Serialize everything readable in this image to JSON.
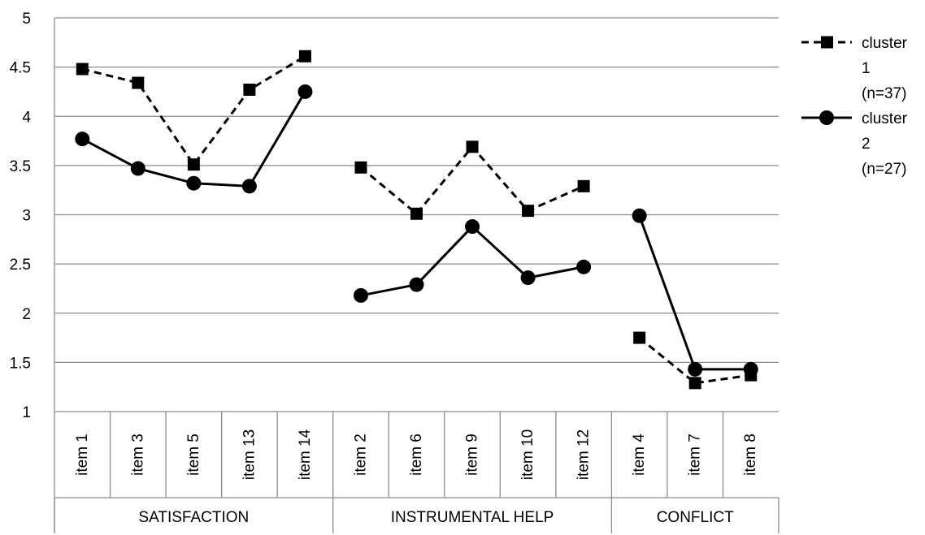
{
  "chart_data": {
    "type": "line",
    "title": "",
    "xlabel": "",
    "ylabel": "",
    "ylim": [
      1,
      5
    ],
    "y_ticks": [
      "1",
      "1.5",
      "2",
      "2.5",
      "3",
      "3.5",
      "4",
      "4.5",
      "5"
    ],
    "grid": "horizontal",
    "legend_position": "right",
    "categories": [
      "item 1",
      "item 3",
      "item 5",
      "item 13",
      "item 14",
      "item 2",
      "item 6",
      "item 9",
      "item 10",
      "item 12",
      "item 4",
      "item 7",
      "item 8"
    ],
    "groups": [
      {
        "label": "SATISFACTION",
        "count": 5
      },
      {
        "label": "INSTRUMENTAL HELP",
        "count": 5
      },
      {
        "label": "CONFLICT",
        "count": 3
      }
    ],
    "series": [
      {
        "name": "cluster 1 (n=37)",
        "legend_lines": [
          "cluster",
          "1",
          "(n=37)"
        ],
        "marker": "square",
        "line_style": "dashed",
        "color": "#000000",
        "values": [
          4.48,
          4.34,
          3.51,
          4.27,
          4.61,
          3.48,
          3.01,
          3.69,
          3.04,
          3.29,
          1.75,
          1.29,
          1.37
        ]
      },
      {
        "name": "cluster 2 (n=27)",
        "legend_lines": [
          "cluster",
          "2",
          "(n=27)"
        ],
        "marker": "circle",
        "line_style": "solid",
        "color": "#000000",
        "values": [
          3.77,
          3.47,
          3.32,
          3.29,
          4.25,
          2.18,
          2.29,
          2.88,
          2.36,
          2.47,
          2.99,
          1.43,
          1.43
        ]
      }
    ]
  }
}
